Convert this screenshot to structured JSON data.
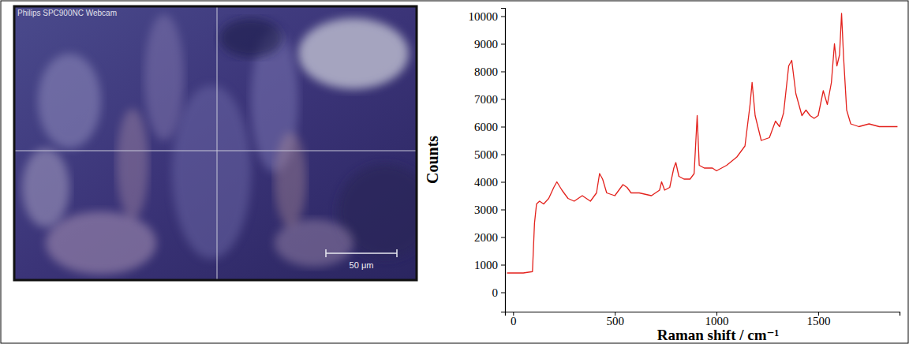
{
  "image": {
    "overlay_text": "Philips SPC900NC Webcam",
    "scale_bar": "50 μm"
  },
  "chart_data": {
    "type": "line",
    "xlabel": "Raman shift / cm⁻¹",
    "ylabel": "Counts",
    "color": "#e3211c",
    "xlim": [
      -40,
      1900
    ],
    "ylim": [
      -700,
      10300
    ],
    "xticks": [
      0,
      500,
      1000,
      1500
    ],
    "yticks": [
      0,
      1000,
      2000,
      3000,
      4000,
      5000,
      6000,
      7000,
      8000,
      9000,
      10000
    ],
    "grid": false,
    "x": [
      -30,
      0,
      50,
      95,
      105,
      115,
      130,
      150,
      175,
      200,
      215,
      240,
      270,
      300,
      340,
      380,
      410,
      425,
      440,
      460,
      500,
      520,
      540,
      560,
      580,
      620,
      680,
      720,
      730,
      745,
      770,
      790,
      800,
      815,
      840,
      870,
      890,
      905,
      915,
      940,
      980,
      1000,
      1050,
      1100,
      1140,
      1165,
      1175,
      1190,
      1220,
      1260,
      1290,
      1310,
      1330,
      1355,
      1370,
      1390,
      1420,
      1440,
      1460,
      1480,
      1500,
      1525,
      1545,
      1565,
      1580,
      1592,
      1605,
      1615,
      1625,
      1640,
      1660,
      1700,
      1750,
      1800,
      1850,
      1890
    ],
    "values": [
      700,
      700,
      700,
      750,
      2500,
      3200,
      3300,
      3200,
      3400,
      3800,
      4000,
      3700,
      3400,
      3300,
      3500,
      3300,
      3600,
      4300,
      4100,
      3600,
      3500,
      3700,
      3900,
      3800,
      3600,
      3600,
      3500,
      3700,
      4000,
      3700,
      3800,
      4500,
      4700,
      4200,
      4100,
      4100,
      4300,
      6400,
      4600,
      4500,
      4500,
      4400,
      4600,
      4900,
      5300,
      6800,
      7600,
      6400,
      5500,
      5600,
      6200,
      6000,
      6500,
      8200,
      8400,
      7200,
      6400,
      6600,
      6400,
      6300,
      6400,
      7300,
      6800,
      7600,
      9000,
      8200,
      8600,
      10100,
      8500,
      6600,
      6100,
      6000,
      6100,
      6000,
      6000,
      6000
    ]
  }
}
